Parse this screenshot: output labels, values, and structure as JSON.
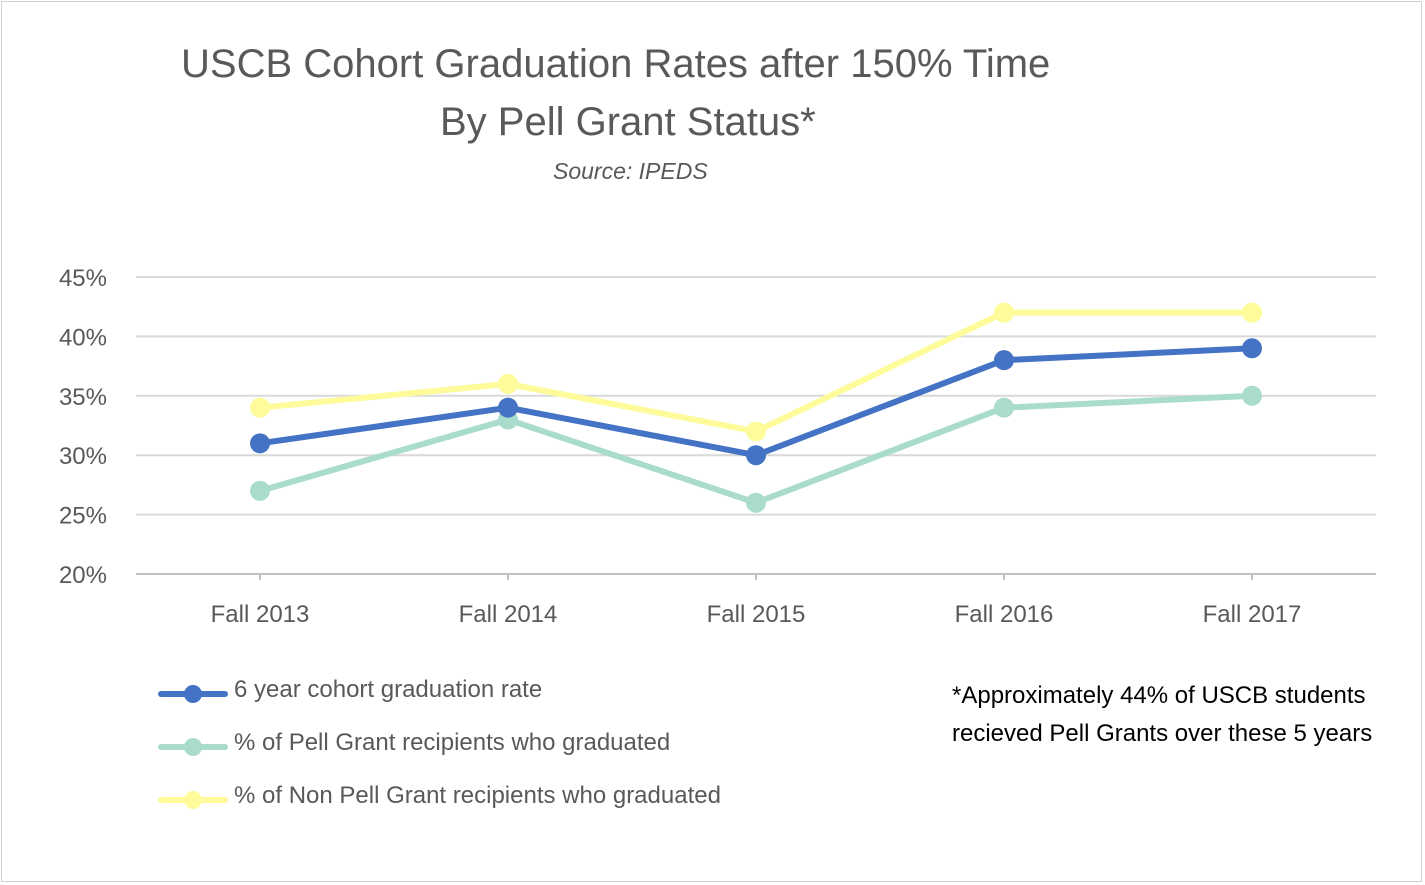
{
  "chart_data": {
    "type": "line",
    "title_line1": "USCB Cohort Graduation Rates after 150% Time",
    "title_line2": "By Pell Grant Status*",
    "subtitle": "Source: IPEDS",
    "categories": [
      "Fall 2013",
      "Fall 2014",
      "Fall 2015",
      "Fall 2016",
      "Fall 2017"
    ],
    "ylim": [
      0.2,
      0.45
    ],
    "yticks": [
      "45%",
      "40%",
      "35%",
      "30%",
      "25%",
      "20%"
    ],
    "ytick_values": [
      0.45,
      0.4,
      0.35,
      0.3,
      0.25,
      0.2
    ],
    "grid": true,
    "legend_position": "bottom-left",
    "series": [
      {
        "name": "6  year cohort graduation rate",
        "color": "#4472c4",
        "values": [
          0.31,
          0.34,
          0.3,
          0.38,
          0.39
        ]
      },
      {
        "name": "% of Pell Grant recipients who graduated",
        "color": "#a9dccc",
        "values": [
          0.27,
          0.33,
          0.26,
          0.34,
          0.35
        ]
      },
      {
        "name": "% of Non Pell Grant recipients who graduated",
        "color": "#fdfb9a",
        "values": [
          0.34,
          0.36,
          0.32,
          0.42,
          0.42
        ]
      }
    ],
    "footnote": "*Approximately 44% of USCB students recieved Pell Grants over these 5 years"
  },
  "colors": {
    "gridline": "#d9d9d9",
    "axis": "#bfbfbf",
    "text": "#595959"
  }
}
